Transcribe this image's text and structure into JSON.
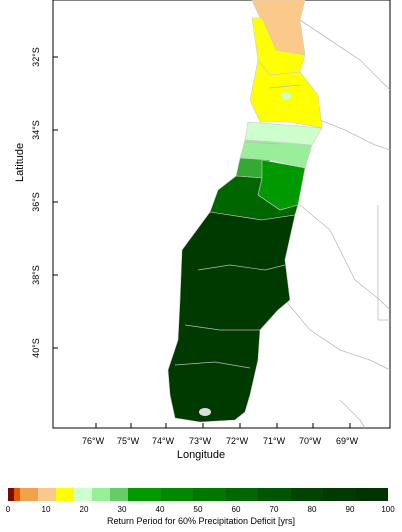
{
  "map": {
    "y_axis_title": "Latitude",
    "x_axis_title": "Longitude",
    "lat_ticks": [
      "32°S",
      "34°S",
      "36°S",
      "38°S",
      "40°S"
    ],
    "lon_ticks": [
      "76°W",
      "75°W",
      "74°W",
      "73°W",
      "72°W",
      "71°W",
      "70°W",
      "69°W"
    ],
    "legend": {
      "title": "Return Period for 60% Precipitation Deficit [yrs]",
      "ticks": [
        "0",
        "10",
        "20",
        "30",
        "40",
        "50",
        "60",
        "70",
        "80",
        "90",
        "100"
      ],
      "colors": [
        "#7a0a00",
        "#e05a00",
        "#f2a24a",
        "#f8c98a",
        "#ffff00",
        "#ccffcc",
        "#99ee99",
        "#66cc66",
        "#009900",
        "#008800",
        "#007700",
        "#006600",
        "#005500",
        "#004400",
        "#003a00",
        "#003300"
      ]
    },
    "region_colors": {
      "north_orange": "#fbc98a",
      "yellow": "#ffff00",
      "pale_green": "#ccffcc",
      "light_green": "#99ee99",
      "mid_green": "#33aa33",
      "green": "#009900",
      "dark_green": "#006600",
      "darkest_green": "#003a00",
      "borders": "#aaaaaa"
    }
  }
}
